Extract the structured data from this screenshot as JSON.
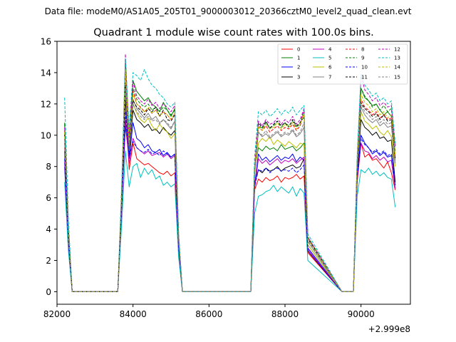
{
  "chart_data": {
    "type": "line",
    "suptitle": "Data file: modeM0/AS1A05_205T01_9000003012_20366cztM0_level2_quad_clean.evt",
    "title": "Quadrant 1 module wise count rates with 100.0s bins.",
    "xlabel": "",
    "ylabel": "",
    "x_offset_label": "+2.999e8",
    "xlim": [
      82000,
      91300
    ],
    "ylim": [
      -0.8,
      16
    ],
    "xticks": [
      82000,
      84000,
      86000,
      88000,
      90000
    ],
    "xtick_labels": [
      "82000",
      "84000",
      "86000",
      "88000",
      "90000"
    ],
    "yticks": [
      0,
      2,
      4,
      6,
      8,
      10,
      12,
      14,
      16
    ],
    "ytick_labels": [
      "0",
      "2",
      "4",
      "6",
      "8",
      "10",
      "12",
      "14",
      "16"
    ],
    "legend_position": "top-right",
    "x": [
      82200,
      82300,
      82400,
      82500,
      83500,
      83600,
      83700,
      83800,
      83900,
      84000,
      84100,
      84200,
      84300,
      84400,
      84500,
      84600,
      84700,
      84800,
      84900,
      85000,
      85100,
      85200,
      85300,
      86900,
      87000,
      87100,
      87200,
      87300,
      87400,
      87500,
      87600,
      87700,
      87800,
      87900,
      88000,
      88100,
      88200,
      88300,
      88400,
      88500,
      88600,
      89500,
      89600,
      89700,
      89800,
      89900,
      90000,
      90100,
      90200,
      90300,
      90400,
      90500,
      90600,
      90700,
      90800,
      90900
    ],
    "series": [
      {
        "name": "0",
        "color": "#ff0000",
        "dash": "solid",
        "values": [
          9.2,
          3.5,
          0,
          0,
          0,
          0,
          5.0,
          12.5,
          7.8,
          9.5,
          8.5,
          8.3,
          8.1,
          8.2,
          8.0,
          7.8,
          7.6,
          7.5,
          7.7,
          7.4,
          7.6,
          2.5,
          0,
          0,
          0,
          0,
          6.5,
          7.2,
          7.0,
          7.3,
          7.1,
          7.2,
          7.4,
          7.0,
          7.3,
          7.2,
          7.3,
          7.5,
          7.2,
          7.4,
          2.5,
          0,
          0,
          0,
          0,
          7.0,
          9.5,
          8.6,
          8.8,
          8.4,
          8.5,
          8.2,
          7.9,
          8.3,
          7.6,
          6.5
        ]
      },
      {
        "name": "1",
        "color": "#008000",
        "dash": "solid",
        "values": [
          10.8,
          4.0,
          0,
          0,
          0,
          0,
          6.0,
          14.8,
          9.8,
          13.5,
          12.8,
          12.5,
          12.2,
          12.4,
          12.0,
          11.8,
          11.5,
          12.1,
          11.6,
          11.2,
          11.7,
          3.5,
          0,
          0,
          0,
          0,
          7.8,
          9.2,
          9.0,
          9.3,
          9.1,
          9.2,
          9.0,
          9.4,
          9.1,
          9.2,
          9.3,
          9.0,
          9.2,
          9.5,
          3.0,
          0,
          0,
          0,
          0,
          8.3,
          13.0,
          12.4,
          12.2,
          11.9,
          12.0,
          11.6,
          11.3,
          11.5,
          11.2,
          9.3
        ]
      },
      {
        "name": "2",
        "color": "#0000ff",
        "dash": "solid",
        "values": [
          8.0,
          3.0,
          0,
          0,
          0,
          0,
          5.2,
          10.6,
          8.5,
          10.8,
          9.8,
          9.6,
          9.2,
          9.4,
          9.0,
          8.9,
          9.1,
          8.7,
          8.9,
          8.6,
          8.8,
          2.8,
          0,
          0,
          0,
          0,
          6.8,
          8.8,
          8.4,
          8.6,
          8.3,
          8.5,
          8.7,
          8.4,
          8.6,
          8.5,
          8.8,
          8.3,
          8.6,
          8.4,
          2.8,
          0,
          0,
          0,
          0,
          7.4,
          10.0,
          9.5,
          9.2,
          8.8,
          9.0,
          8.7,
          8.9,
          8.6,
          8.7,
          6.8
        ]
      },
      {
        "name": "3",
        "color": "#000000",
        "dash": "solid",
        "values": [
          9.0,
          3.3,
          0,
          0,
          0,
          0,
          5.6,
          12.3,
          8.8,
          11.6,
          11.0,
          10.8,
          10.5,
          10.7,
          10.3,
          10.4,
          10.1,
          10.5,
          10.2,
          10.0,
          10.3,
          3.2,
          0,
          0,
          0,
          0,
          6.9,
          7.8,
          7.6,
          7.9,
          7.7,
          7.8,
          8.0,
          7.7,
          7.9,
          8.0,
          8.1,
          7.9,
          8.0,
          8.5,
          2.6,
          0,
          0,
          0,
          0,
          7.7,
          11.0,
          10.5,
          10.3,
          10.0,
          10.2,
          9.8,
          9.9,
          9.6,
          9.7,
          7.0
        ]
      },
      {
        "name": "4",
        "color": "#bf00bf",
        "dash": "solid",
        "values": [
          8.3,
          3.1,
          0,
          0,
          0,
          0,
          5.3,
          11.0,
          8.2,
          9.8,
          9.2,
          9.0,
          8.8,
          9.0,
          8.7,
          8.8,
          8.9,
          8.6,
          8.8,
          8.5,
          8.7,
          2.7,
          0,
          0,
          0,
          0,
          6.6,
          8.5,
          8.2,
          8.4,
          8.1,
          8.3,
          8.5,
          8.2,
          8.4,
          8.3,
          8.5,
          8.2,
          8.4,
          8.6,
          2.7,
          0,
          0,
          0,
          0,
          7.2,
          9.5,
          9.0,
          8.9,
          8.5,
          8.7,
          8.4,
          8.6,
          8.3,
          8.4,
          6.6
        ]
      },
      {
        "name": "5",
        "color": "#00bfbf",
        "dash": "solid",
        "values": [
          7.0,
          2.6,
          0,
          0,
          0,
          0,
          4.3,
          9.0,
          6.7,
          8.0,
          8.2,
          7.3,
          7.9,
          7.5,
          7.8,
          7.2,
          7.4,
          6.8,
          7.0,
          6.7,
          6.9,
          2.2,
          0,
          0,
          0,
          0,
          5.0,
          6.1,
          6.2,
          6.4,
          6.5,
          6.8,
          6.4,
          6.7,
          6.5,
          6.3,
          6.7,
          6.1,
          6.6,
          6.3,
          2.0,
          0,
          0,
          0,
          0,
          6.1,
          7.8,
          7.6,
          7.9,
          7.5,
          7.7,
          7.4,
          7.6,
          7.3,
          7.2,
          5.4
        ]
      },
      {
        "name": "6",
        "color": "#bfbf00",
        "dash": "solid",
        "values": [
          10.0,
          3.7,
          0,
          0,
          0,
          0,
          5.9,
          13.5,
          9.2,
          12.0,
          11.4,
          11.0,
          10.8,
          11.1,
          10.6,
          10.3,
          10.7,
          10.4,
          10.2,
          9.8,
          10.1,
          3.3,
          0,
          0,
          0,
          0,
          7.5,
          9.5,
          9.8,
          9.6,
          9.9,
          9.4,
          9.7,
          9.5,
          9.3,
          9.6,
          9.4,
          9.2,
          9.5,
          9.4,
          3.0,
          0,
          0,
          0,
          0,
          8.0,
          11.5,
          10.9,
          10.7,
          10.4,
          10.6,
          10.2,
          10.0,
          10.3,
          9.9,
          8.0
        ]
      },
      {
        "name": "7",
        "color": "#808080",
        "dash": "solid",
        "values": [
          9.5,
          3.5,
          0,
          0,
          0,
          0,
          5.7,
          12.8,
          9.0,
          12.3,
          11.7,
          11.4,
          11.1,
          11.4,
          11.0,
          11.2,
          10.8,
          11.0,
          10.7,
          10.4,
          10.9,
          3.3,
          0,
          0,
          0,
          0,
          7.6,
          10.2,
          9.9,
          10.1,
          9.8,
          10.0,
          10.2,
          9.9,
          10.1,
          10.0,
          10.3,
          9.9,
          10.1,
          10.5,
          3.2,
          0,
          0,
          0,
          0,
          7.9,
          11.8,
          11.3,
          11.0,
          10.8,
          11.0,
          10.6,
          10.8,
          10.5,
          10.6,
          8.2
        ]
      },
      {
        "name": "8",
        "color": "#ff0000",
        "dash": "dashed",
        "values": [
          10.3,
          3.8,
          0,
          0,
          0,
          0,
          6.0,
          14.0,
          9.5,
          12.8,
          12.0,
          11.8,
          11.5,
          11.7,
          11.4,
          11.6,
          11.2,
          11.5,
          11.3,
          11.0,
          11.4,
          3.5,
          0,
          0,
          0,
          0,
          7.9,
          10.5,
          10.3,
          10.6,
          10.2,
          10.4,
          10.6,
          10.3,
          10.5,
          10.4,
          10.7,
          10.3,
          10.6,
          11.5,
          3.4,
          0,
          0,
          0,
          0,
          8.3,
          12.3,
          11.8,
          11.6,
          11.3,
          11.5,
          11.1,
          11.3,
          11.0,
          11.1,
          8.6
        ]
      },
      {
        "name": "9",
        "color": "#008000",
        "dash": "dashed",
        "values": [
          10.7,
          4.0,
          0,
          0,
          0,
          0,
          6.1,
          14.5,
          9.7,
          13.0,
          12.3,
          12.0,
          11.8,
          12.0,
          11.6,
          11.8,
          11.5,
          11.8,
          11.6,
          11.3,
          11.6,
          3.6,
          0,
          0,
          0,
          0,
          8.0,
          10.7,
          10.4,
          10.8,
          10.5,
          10.6,
          10.9,
          10.5,
          10.8,
          10.6,
          10.9,
          10.5,
          10.8,
          11.6,
          3.5,
          0,
          0,
          0,
          0,
          8.4,
          13.0,
          12.5,
          12.2,
          11.8,
          12.0,
          11.6,
          11.9,
          11.5,
          11.7,
          9.0
        ]
      },
      {
        "name": "10",
        "color": "#0000ff",
        "dash": "dashed",
        "values": [
          8.5,
          3.2,
          0,
          0,
          0,
          0,
          5.4,
          11.5,
          8.6,
          9.6,
          9.2,
          9.0,
          8.9,
          9.1,
          8.8,
          8.9,
          8.7,
          9.0,
          8.8,
          8.6,
          8.8,
          2.8,
          0,
          0,
          0,
          0,
          6.7,
          7.8,
          7.7,
          7.9,
          7.6,
          7.8,
          7.9,
          7.7,
          7.8,
          7.7,
          7.9,
          7.6,
          7.8,
          8.1,
          2.6,
          0,
          0,
          0,
          0,
          7.3,
          9.8,
          9.4,
          9.2,
          8.9,
          9.1,
          8.8,
          9.0,
          8.7,
          8.8,
          6.8
        ]
      },
      {
        "name": "11",
        "color": "#000000",
        "dash": "dashed",
        "values": [
          10.1,
          3.8,
          0,
          0,
          0,
          0,
          6.0,
          13.2,
          9.3,
          12.2,
          11.8,
          11.6,
          11.3,
          11.7,
          11.5,
          11.8,
          11.2,
          11.6,
          11.0,
          10.9,
          11.3,
          3.4,
          0,
          0,
          0,
          0,
          7.8,
          10.8,
          10.5,
          10.9,
          10.4,
          10.7,
          10.9,
          10.6,
          10.8,
          10.5,
          11.0,
          10.6,
          10.8,
          11.2,
          3.4,
          0,
          0,
          0,
          0,
          8.2,
          12.1,
          11.7,
          11.5,
          11.2,
          11.4,
          11.0,
          11.3,
          10.9,
          11.0,
          8.5
        ]
      },
      {
        "name": "12",
        "color": "#bf00bf",
        "dash": "dashed",
        "values": [
          10.5,
          3.9,
          0,
          0,
          0,
          0,
          6.2,
          15.2,
          9.6,
          13.4,
          12.5,
          12.2,
          12.0,
          12.3,
          11.9,
          12.1,
          11.7,
          12.0,
          11.8,
          11.5,
          11.9,
          3.6,
          0,
          0,
          0,
          0,
          8.0,
          10.9,
          10.6,
          11.0,
          10.7,
          10.8,
          11.1,
          10.7,
          11.0,
          10.8,
          11.2,
          10.7,
          11.0,
          11.7,
          3.5,
          0,
          0,
          0,
          0,
          8.4,
          13.8,
          12.9,
          12.6,
          12.2,
          12.4,
          11.9,
          12.1,
          11.8,
          11.9,
          9.2
        ]
      },
      {
        "name": "13",
        "color": "#00bfbf",
        "dash": "dashed",
        "values": [
          12.4,
          4.6,
          0,
          0,
          0,
          0,
          6.8,
          14.9,
          10.4,
          14.0,
          13.8,
          13.5,
          14.2,
          13.6,
          13.2,
          13.0,
          12.6,
          12.4,
          12.0,
          11.8,
          12.1,
          3.8,
          0,
          0,
          0,
          0,
          8.6,
          11.5,
          11.3,
          11.6,
          11.2,
          11.4,
          11.7,
          11.3,
          11.6,
          11.4,
          11.8,
          11.3,
          11.6,
          11.9,
          3.7,
          0,
          0,
          0,
          0,
          8.8,
          13.9,
          13.2,
          12.9,
          12.5,
          12.7,
          12.2,
          12.4,
          12.0,
          12.2,
          9.5
        ]
      },
      {
        "name": "14",
        "color": "#bfbf00",
        "dash": "dashed",
        "values": [
          10.2,
          3.8,
          0,
          0,
          0,
          0,
          6.1,
          14.2,
          9.5,
          12.6,
          12.0,
          11.7,
          11.5,
          11.8,
          11.4,
          11.6,
          11.2,
          11.5,
          11.3,
          11.0,
          11.4,
          3.5,
          0,
          0,
          0,
          0,
          7.9,
          10.6,
          10.3,
          10.7,
          10.4,
          10.5,
          10.8,
          10.4,
          10.7,
          10.5,
          10.8,
          10.4,
          10.7,
          11.3,
          3.4,
          0,
          0,
          0,
          0,
          8.3,
          12.6,
          12.1,
          11.9,
          11.5,
          11.7,
          11.3,
          11.5,
          11.1,
          11.3,
          8.8
        ]
      },
      {
        "name": "15",
        "color": "#808080",
        "dash": "dashed",
        "values": [
          9.7,
          3.6,
          0,
          0,
          0,
          0,
          5.8,
          13.0,
          9.1,
          12.0,
          11.5,
          11.2,
          11.0,
          11.2,
          10.9,
          11.0,
          10.7,
          11.0,
          10.8,
          10.5,
          10.9,
          3.3,
          0,
          0,
          0,
          0,
          7.6,
          10.2,
          10.0,
          10.3,
          9.9,
          10.1,
          10.3,
          10.0,
          10.2,
          10.1,
          10.4,
          10.0,
          10.2,
          10.8,
          3.3,
          0,
          0,
          0,
          0,
          8.0,
          12.0,
          11.5,
          11.3,
          11.0,
          11.2,
          10.8,
          11.0,
          10.7,
          10.8,
          8.4
        ]
      }
    ]
  }
}
